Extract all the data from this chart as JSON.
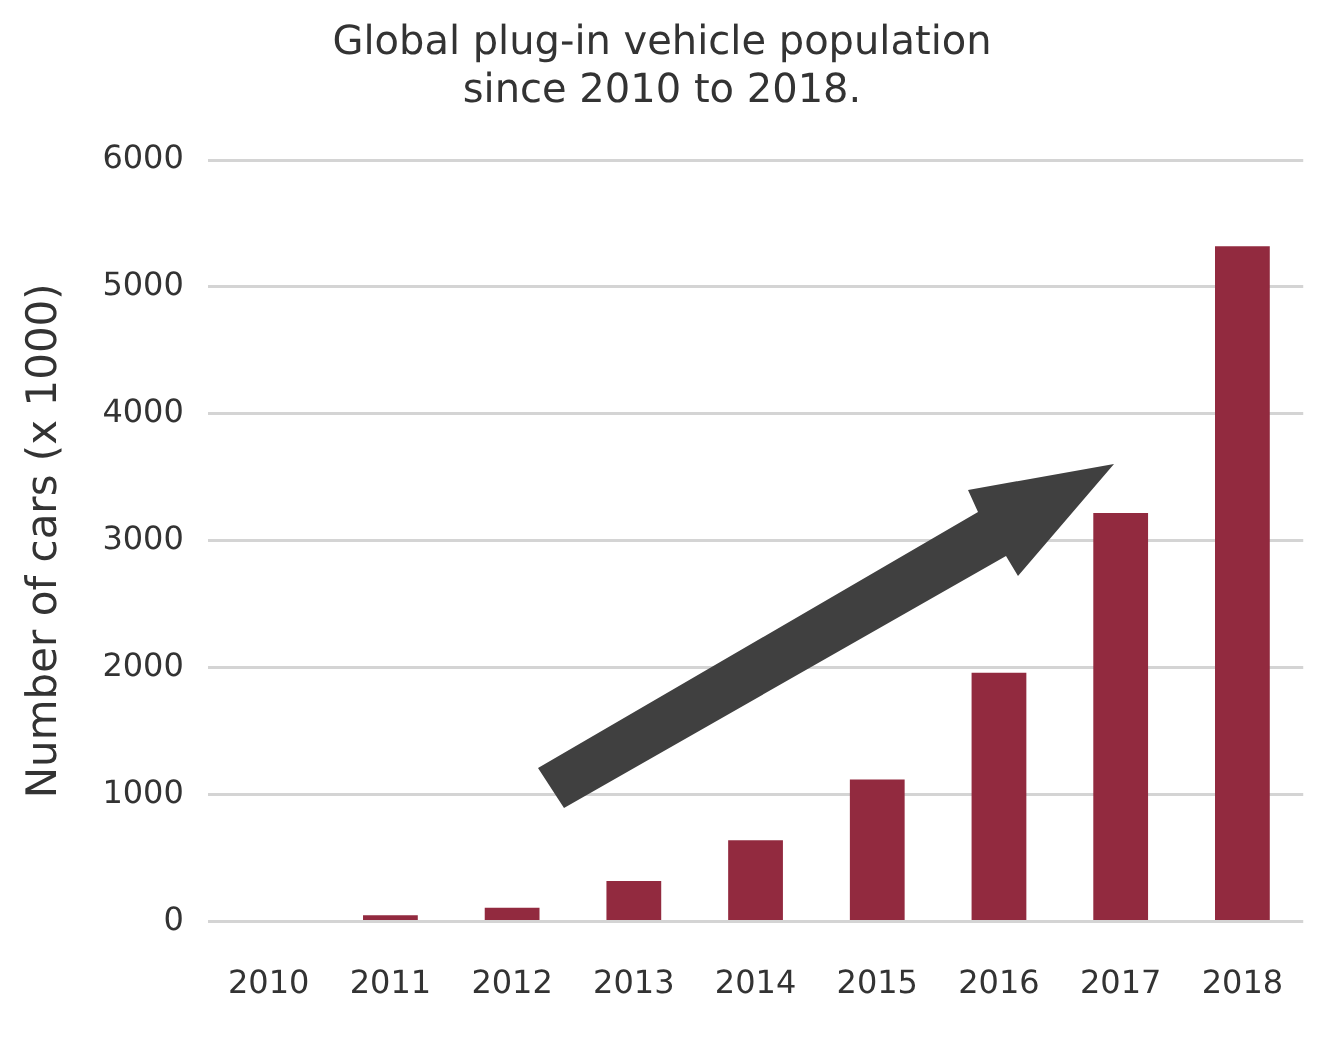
{
  "chart_data": {
    "type": "bar",
    "title": [
      "Global plug-in vehicle population",
      "since 2010 to 2018."
    ],
    "ylabel": "Number of cars (x 1000)",
    "categories": [
      "2010",
      "2011",
      "2012",
      "2013",
      "2014",
      "2015",
      "2016",
      "2017",
      "2018"
    ],
    "values": [
      null,
      50,
      110,
      320,
      640,
      1120,
      1960,
      3220,
      5320
    ],
    "color": "#922a3f",
    "ylim": [
      0,
      6000
    ],
    "yticks": [
      0,
      1000,
      2000,
      3000,
      4000,
      5000,
      6000
    ],
    "grid": "y"
  }
}
